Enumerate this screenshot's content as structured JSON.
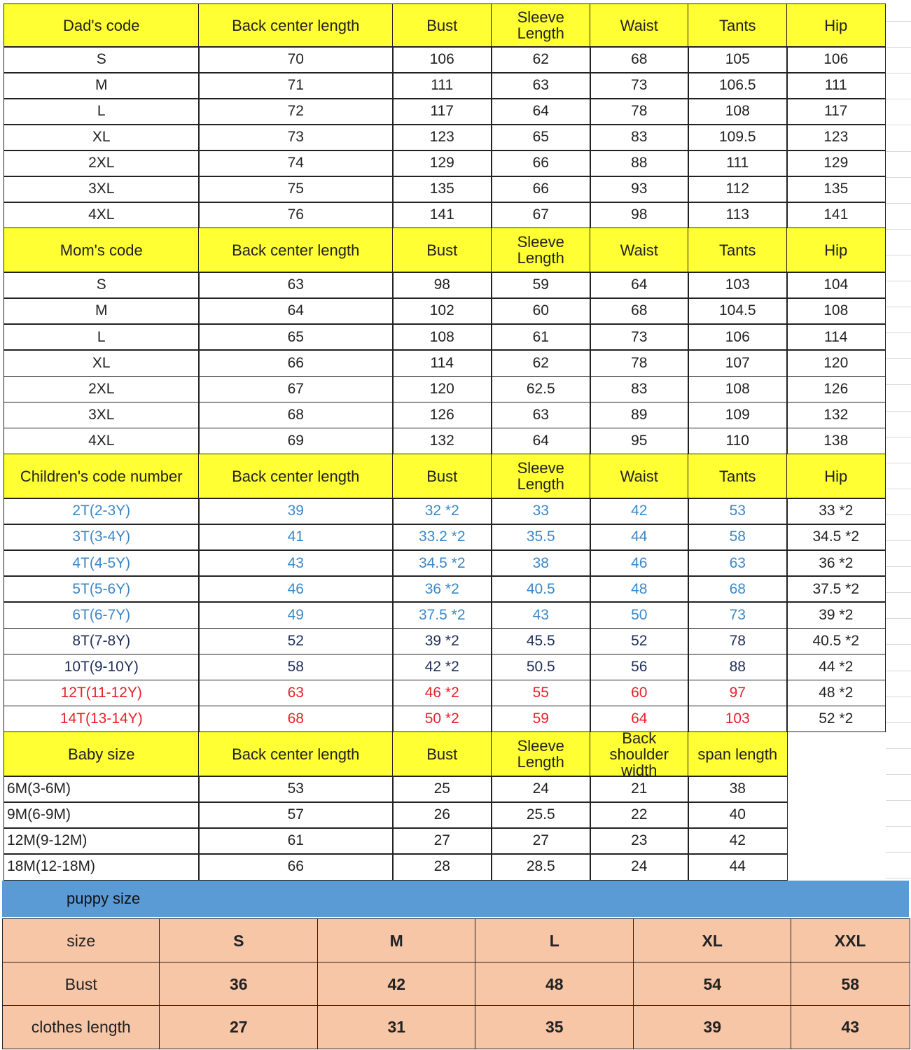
{
  "colors": {
    "header_bg": "#ffff33",
    "blue_text": "#3a87c8",
    "navy_text": "#1f2d5a",
    "red_text": "#e8202a",
    "banner_bg": "#5b9bd5",
    "puppy_bg": "#f7c6a6"
  },
  "sections": [
    {
      "id": "dad",
      "headers": [
        "Dad's code",
        "Back center length",
        "Bust",
        "Sleeve\nLength",
        "Waist",
        "Tants",
        "Hip"
      ],
      "rows": [
        [
          "S",
          "70",
          "106",
          "62",
          "68",
          "105",
          "106"
        ],
        [
          "M",
          "71",
          "111",
          "63",
          "73",
          "106.5",
          "111"
        ],
        [
          "L",
          "72",
          "117",
          "64",
          "78",
          "108",
          "117"
        ],
        [
          "XL",
          "73",
          "123",
          "65",
          "83",
          "109.5",
          "123"
        ],
        [
          "2XL",
          "74",
          "129",
          "66",
          "88",
          "111",
          "129"
        ],
        [
          "3XL",
          "75",
          "135",
          "66",
          "93",
          "112",
          "135"
        ],
        [
          "4XL",
          "76",
          "141",
          "67",
          "98",
          "113",
          "141"
        ]
      ]
    },
    {
      "id": "mom",
      "headers": [
        "Mom's code",
        "Back center length",
        "Bust",
        "Sleeve\nLength",
        "Waist",
        "Tants",
        "Hip"
      ],
      "rows": [
        [
          "S",
          "63",
          "98",
          "59",
          "64",
          "103",
          "104"
        ],
        [
          "M",
          "64",
          "102",
          "60",
          "68",
          "104.5",
          "108"
        ],
        [
          "L",
          "65",
          "108",
          "61",
          "73",
          "106",
          "114"
        ],
        [
          "XL",
          "66",
          "114",
          "62",
          "78",
          "107",
          "120"
        ],
        [
          "2XL",
          "67",
          "120",
          "62.5",
          "83",
          "108",
          "126"
        ],
        [
          "3XL",
          "68",
          "126",
          "63",
          "89",
          "109",
          "132"
        ],
        [
          "4XL",
          "69",
          "132",
          "64",
          "95",
          "110",
          "138"
        ]
      ]
    },
    {
      "id": "children",
      "headers": [
        "Children's code number",
        "Back center length",
        "Bust",
        "Sleeve\nLength",
        "Waist",
        "Tants",
        "Hip"
      ],
      "rows": [
        [
          "2T(2-3Y)",
          "39",
          "32 *2",
          "33",
          "42",
          "53",
          "33 *2"
        ],
        [
          "3T(3-4Y)",
          "41",
          "33.2 *2",
          "35.5",
          "44",
          "58",
          "34.5 *2"
        ],
        [
          "4T(4-5Y)",
          "43",
          "34.5 *2",
          "38",
          "46",
          "63",
          "36 *2"
        ],
        [
          "5T(5-6Y)",
          "46",
          "36 *2",
          "40.5",
          "48",
          "68",
          "37.5 *2"
        ],
        [
          "6T(6-7Y)",
          "49",
          "37.5 *2",
          "43",
          "50",
          "73",
          "39 *2"
        ],
        [
          "8T(7-8Y)",
          "52",
          "39 *2",
          "45.5",
          "52",
          "78",
          "40.5 *2"
        ],
        [
          "10T(9-10Y)",
          "58",
          "42 *2",
          "50.5",
          "56",
          "88",
          "44 *2"
        ],
        [
          "12T(11-12Y)",
          "63",
          "46 *2",
          "55",
          "60",
          "97",
          "48 *2"
        ],
        [
          "14T(13-14Y)",
          "68",
          "50 *2",
          "59",
          "64",
          "103",
          "52 *2"
        ]
      ],
      "row_colors": [
        "blue",
        "blue",
        "blue",
        "blue",
        "blue",
        "navy",
        "navy",
        "red",
        "red"
      ]
    },
    {
      "id": "baby",
      "headers": [
        "Baby size",
        "Back center length",
        "Bust",
        "Sleeve\nLength",
        "Back\nshoulder width",
        "span length"
      ],
      "rows": [
        [
          "6M(3-6M)",
          "53",
          "25",
          "24",
          "21",
          "38"
        ],
        [
          "9M(6-9M)",
          "57",
          "26",
          "25.5",
          "22",
          "40"
        ],
        [
          "12M(9-12M)",
          "61",
          "27",
          "27",
          "23",
          "42"
        ],
        [
          "18M(12-18M)",
          "66",
          "28",
          "28.5",
          "24",
          "44"
        ]
      ]
    }
  ],
  "puppy": {
    "title": "puppy size",
    "rows": [
      [
        "size",
        "S",
        "M",
        "L",
        "XL",
        "XXL"
      ],
      [
        "Bust",
        "36",
        "42",
        "48",
        "54",
        "58"
      ],
      [
        "clothes length",
        "27",
        "31",
        "35",
        "39",
        "43"
      ]
    ]
  }
}
